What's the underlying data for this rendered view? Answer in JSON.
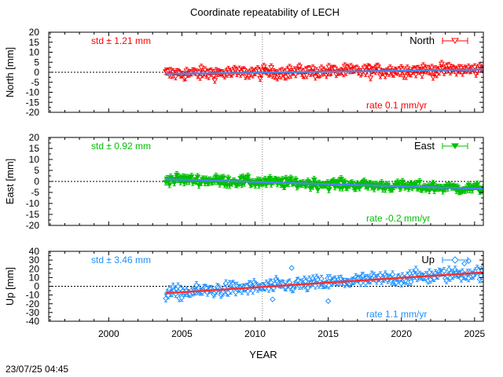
{
  "title": "Coordinate repeatability of LECH",
  "timestamp": "23/07/25 04:45",
  "chart_data": [
    {
      "type": "scatter",
      "component": "North",
      "legend": "North",
      "ylabel": "North [mm]",
      "xlabel": "YEAR",
      "std_label": "std ± 1.21 mm",
      "rate_label": "rate  0.1 mm/yr",
      "color": "#ff0000",
      "trend_color": "#4a86e8",
      "ylim": [
        -20,
        20
      ],
      "yticks": [
        20,
        15,
        10,
        5,
        0,
        -5,
        -10,
        -15,
        -20
      ],
      "xlim": [
        1995.9,
        2025.6
      ],
      "xticks": [
        2000,
        2005,
        2010,
        2015,
        2020,
        2025
      ],
      "show_xtick_labels": false,
      "data_start": 2003.9,
      "data_end": 2025.6,
      "trend": {
        "start": -0.8,
        "rate_mm_per_yr": 0.1
      },
      "spread_mm": 2.4,
      "errorbar_mm": 1.6,
      "marker": "triangle-down-open",
      "break_year": 2010.5
    },
    {
      "type": "scatter",
      "component": "East",
      "legend": "East",
      "ylabel": "East [mm]",
      "xlabel": "YEAR",
      "std_label": "std ± 0.92 mm",
      "rate_label": "rate -0.2 mm/yr",
      "color": "#00c000",
      "trend_color": "#4a86e8",
      "ylim": [
        -20,
        20
      ],
      "yticks": [
        20,
        15,
        10,
        5,
        0,
        -5,
        -10,
        -15,
        -20
      ],
      "xlim": [
        1995.9,
        2025.6
      ],
      "xticks": [
        2000,
        2005,
        2010,
        2015,
        2020,
        2025
      ],
      "show_xtick_labels": false,
      "data_start": 2003.9,
      "data_end": 2025.6,
      "trend": {
        "start": 1.0,
        "rate_mm_per_yr": -0.2
      },
      "spread_mm": 1.9,
      "errorbar_mm": 1.4,
      "marker": "triangle-down-filled",
      "break_year": 2010.5
    },
    {
      "type": "scatter",
      "component": "Up",
      "legend": "Up",
      "ylabel": "Up [mm]",
      "xlabel": "YEAR",
      "std_label": "std ± 3.46 mm",
      "rate_label": "rate  1.1 mm/yr",
      "color": "#1e90ff",
      "trend_color": "#ff3030",
      "ylim": [
        -40,
        40
      ],
      "yticks": [
        40,
        30,
        20,
        10,
        0,
        -10,
        -20,
        -30,
        -40
      ],
      "xlim": [
        1995.9,
        2025.6
      ],
      "xticks": [
        2000,
        2005,
        2010,
        2015,
        2020,
        2025
      ],
      "show_xtick_labels": true,
      "data_start": 2003.9,
      "data_end": 2025.6,
      "trend": {
        "start": -8.0,
        "rate_mm_per_yr": 1.1
      },
      "spread_mm": 6.0,
      "errorbar_mm": 4.0,
      "marker": "diamond-open",
      "break_year": 2010.5
    }
  ]
}
